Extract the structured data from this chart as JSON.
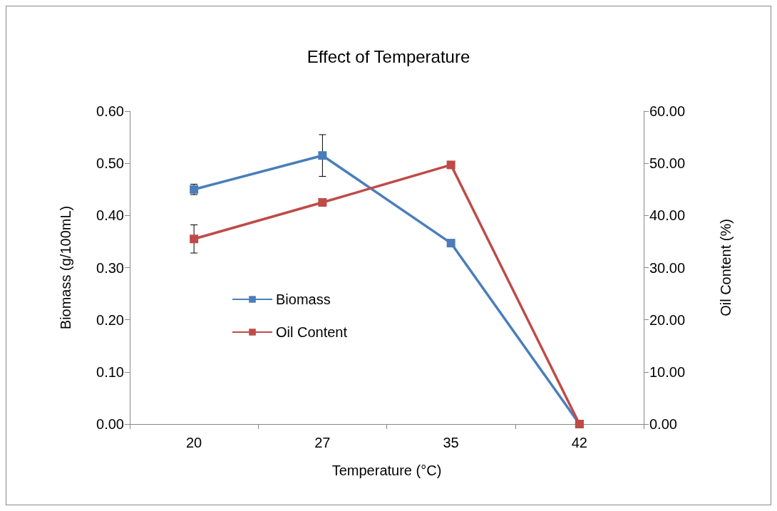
{
  "chart_data": {
    "type": "line",
    "title": "Effect of Temperature",
    "xlabel": "Temperature (°C)",
    "ylabel": "Biomass (g/100mL)",
    "y2label": "Oil Content (%)",
    "categories": [
      "20",
      "27",
      "35",
      "42"
    ],
    "series": [
      {
        "name": "Biomass",
        "color": "#4a7ebb",
        "values": [
          0.45,
          0.515,
          0.347,
          0
        ],
        "errors": [
          0.01,
          0.04,
          null,
          null
        ]
      },
      {
        "name": "Oil Content",
        "color": "#be4b48",
        "values": [
          35.5,
          42.5,
          49.7,
          0
        ],
        "errors": [
          2.7,
          null,
          null,
          null
        ],
        "axis": "y2"
      }
    ],
    "ylim": [
      0,
      0.6
    ],
    "yticks": [
      {
        "value": 0,
        "label": "0.00"
      },
      {
        "value": 0.1,
        "label": "0.10"
      },
      {
        "value": 0.2,
        "label": "0.20"
      },
      {
        "value": 0.3,
        "label": "0.30"
      },
      {
        "value": 0.4,
        "label": "0.40"
      },
      {
        "value": 0.5,
        "label": "0.50"
      },
      {
        "value": 0.6,
        "label": "0.60"
      }
    ],
    "y2lim": [
      0,
      60
    ],
    "y2ticks": [
      {
        "value": 0,
        "label": "0.00"
      },
      {
        "value": 10,
        "label": "10.00"
      },
      {
        "value": 20,
        "label": "20.00"
      },
      {
        "value": 30,
        "label": "30.00"
      },
      {
        "value": 40,
        "label": "40.00"
      },
      {
        "value": 50,
        "label": "50.00"
      },
      {
        "value": 60,
        "label": "60.00"
      }
    ],
    "marker": "square",
    "line_style": "solid",
    "grid": false,
    "legend": "left"
  }
}
